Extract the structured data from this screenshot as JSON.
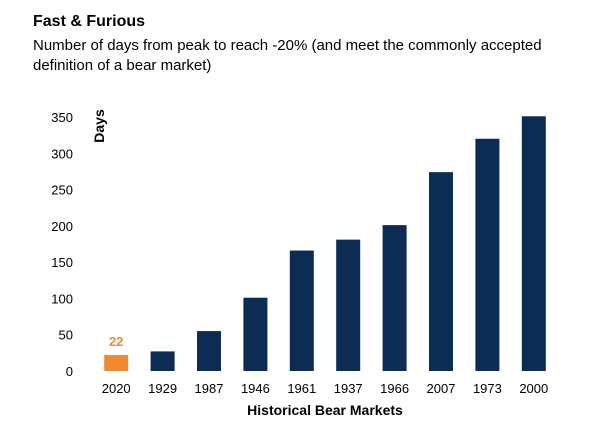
{
  "chart_data": {
    "type": "bar",
    "title": "Fast & Furious",
    "subtitle": "Number of days from peak to reach -20% (and meet the commonly accepted definition of a bear market)",
    "xlabel": "Historical Bear Markets",
    "ylabel": "Days",
    "categories": [
      "2020",
      "1929",
      "1987",
      "1946",
      "1961",
      "1937",
      "1966",
      "2007",
      "1973",
      "2000"
    ],
    "values": [
      22,
      27,
      55,
      101,
      166,
      181,
      201,
      274,
      320,
      351
    ],
    "highlight_index": 0,
    "highlight_label": "22",
    "ylim": [
      0,
      350
    ],
    "yticks": [
      0,
      50,
      100,
      150,
      200,
      250,
      300,
      350
    ],
    "grid": false,
    "colors": {
      "bar": "#0d2c54",
      "highlight": "#f08a32"
    }
  }
}
